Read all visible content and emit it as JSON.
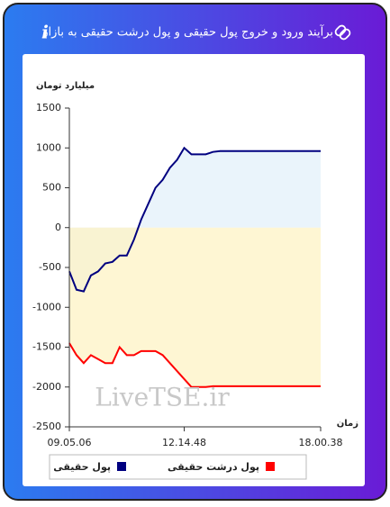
{
  "header": {
    "title": "برآیند ورود و خروج پول حقیقی و پول درشت حقیقی به بازار",
    "info": "i"
  },
  "chart_data": {
    "type": "line",
    "y_label": "میلیارد تومان",
    "x_label": "زمان",
    "watermark": "LiveTSE.ir",
    "x": [
      0,
      1,
      2,
      3,
      4,
      5,
      6,
      7,
      8,
      9,
      10,
      11,
      12,
      13,
      14,
      15,
      16,
      17,
      18,
      19,
      20,
      21,
      22,
      23,
      24,
      25,
      26,
      27,
      28,
      29,
      30,
      31,
      32,
      33,
      34,
      35
    ],
    "xlim": [
      0,
      35
    ],
    "xticks": [
      {
        "value": 0,
        "label": "09.05.06"
      },
      {
        "value": 16,
        "label": "12.14.48"
      },
      {
        "value": 35,
        "label": "18.00.38"
      }
    ],
    "ylim": [
      -2500,
      1500
    ],
    "yticks": [
      -2500,
      -2000,
      -1500,
      -1000,
      -500,
      0,
      500,
      1000,
      1500
    ],
    "series": [
      {
        "name": "پول حقیقی",
        "color": "#000080",
        "fill": "#e3f0fa",
        "values": [
          -550,
          -780,
          -800,
          -600,
          -550,
          -450,
          -430,
          -350,
          -350,
          -150,
          100,
          300,
          500,
          600,
          750,
          850,
          1000,
          920,
          920,
          920,
          950,
          960,
          960,
          960,
          960,
          960,
          960,
          960,
          960,
          960,
          960,
          960,
          960,
          960,
          960,
          960
        ]
      },
      {
        "name": "پول درشت حقیقی",
        "color": "#ff0000",
        "fill": "#fdf3c4",
        "values": [
          -1450,
          -1600,
          -1700,
          -1600,
          -1650,
          -1700,
          -1700,
          -1500,
          -1600,
          -1600,
          -1550,
          -1550,
          -1550,
          -1600,
          -1700,
          -1800,
          -1900,
          -2000,
          -2000,
          -2000,
          -1990,
          -1990,
          -1990,
          -1990,
          -1990,
          -1990,
          -1990,
          -1990,
          -1990,
          -1990,
          -1990,
          -1990,
          -1990,
          -1990,
          -1990,
          -1990
        ]
      }
    ]
  }
}
